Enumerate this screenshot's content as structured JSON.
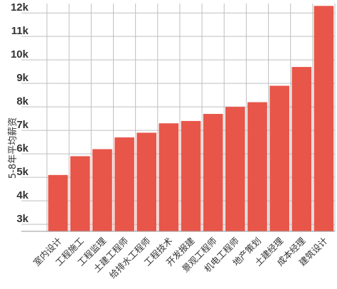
{
  "chart_data": {
    "type": "bar",
    "title": "",
    "xlabel": "",
    "ylabel": "5-8年平均薪资",
    "categories": [
      "室内设计",
      "工程施工",
      "工程监理",
      "土建工程师",
      "给排水工程师",
      "工程技术",
      "开发报建",
      "景观工程师",
      "机电工程师",
      "地产策划",
      "土建经理",
      "成本经理",
      "建筑设计"
    ],
    "values": [
      5100,
      5900,
      6200,
      6700,
      6900,
      7300,
      7400,
      7700,
      8000,
      8200,
      8900,
      9700,
      12300
    ],
    "ylim": [
      2700,
      12400
    ],
    "yticks": [
      3000,
      4000,
      5000,
      6000,
      7000,
      8000,
      9000,
      10000,
      11000,
      12000
    ],
    "ytick_labels": [
      "3k",
      "4k",
      "5k",
      "6k",
      "7k",
      "8k",
      "9k",
      "10k",
      "11k",
      "12k"
    ],
    "bar_color": "#e8564a",
    "grid": true,
    "legend": "none"
  }
}
